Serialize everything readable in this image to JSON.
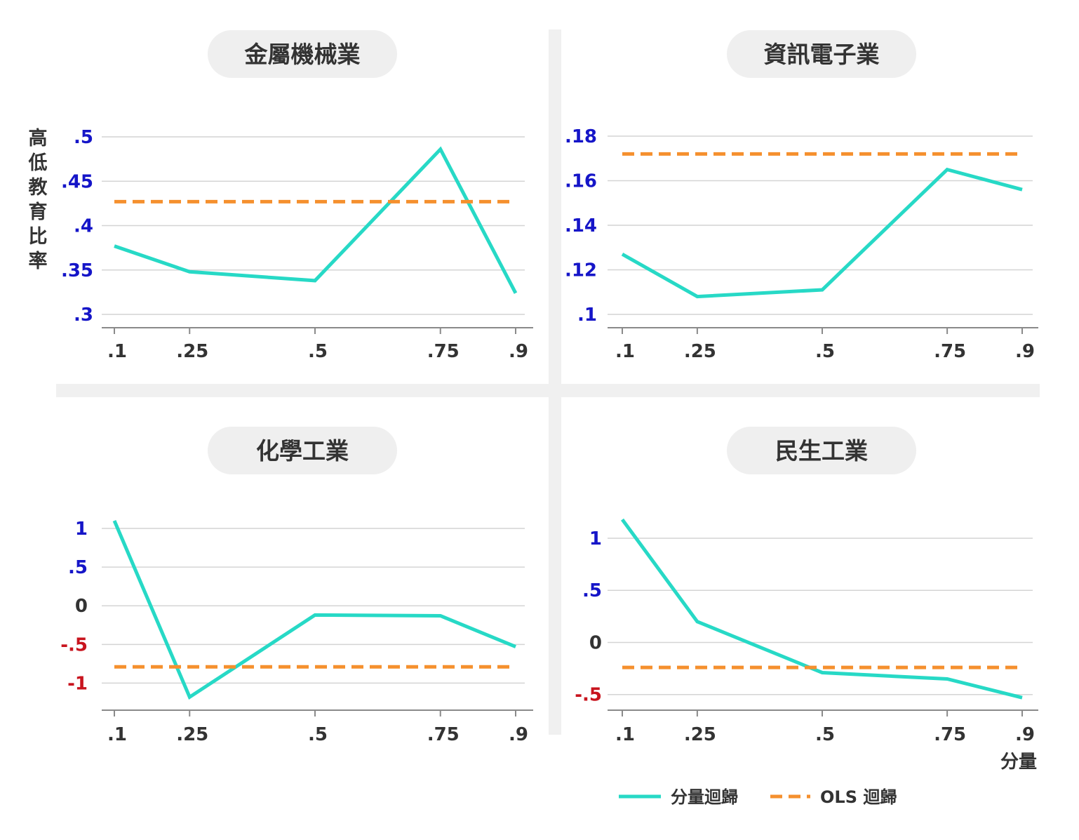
{
  "figure": {
    "y_axis_label": "高低教育比率",
    "x_axis_unit": "分量"
  },
  "legend": {
    "quantile_label": "分量迴歸",
    "ols_label": "OLS 迴歸"
  },
  "colors": {
    "quantile_line": "#27d9c6",
    "ols_line": "#f5902e",
    "positive_tick": "#1515c8",
    "negative_tick": "#c8141e",
    "zero_tick": "#333333",
    "title_pill": "#efefef",
    "divider": "#f0f0f0",
    "grid": "#d4d4d4",
    "axis": "#8a8a8a",
    "text": "#333333"
  },
  "chart_data": [
    {
      "type": "line",
      "title": "金屬機械業",
      "x": [
        0.1,
        0.25,
        0.5,
        0.75,
        0.9
      ],
      "x_tick_labels": [
        ".1",
        ".25",
        ".5",
        ".75",
        ".9"
      ],
      "y_ticks": [
        0.5,
        0.45,
        0.4,
        0.35,
        0.3
      ],
      "y_tick_labels": [
        ".5",
        ".45",
        ".4",
        ".35",
        ".3"
      ],
      "ylim": [
        0.285,
        0.5
      ],
      "series": [
        {
          "name": "分量迴歸",
          "values": [
            0.377,
            0.348,
            0.338,
            0.486,
            0.324
          ]
        },
        {
          "name": "OLS 迴歸",
          "values": [
            0.427,
            0.427,
            0.427,
            0.427,
            0.427
          ]
        }
      ]
    },
    {
      "type": "line",
      "title": "資訊電子業",
      "x": [
        0.1,
        0.25,
        0.5,
        0.75,
        0.9
      ],
      "x_tick_labels": [
        ".1",
        ".25",
        ".5",
        ".75",
        ".9"
      ],
      "y_ticks": [
        0.18,
        0.16,
        0.14,
        0.12,
        0.1
      ],
      "y_tick_labels": [
        ".18",
        ".16",
        ".14",
        ".12",
        ".1"
      ],
      "ylim": [
        0.094,
        0.18
      ],
      "series": [
        {
          "name": "分量迴歸",
          "values": [
            0.127,
            0.108,
            0.111,
            0.165,
            0.156
          ]
        },
        {
          "name": "OLS 迴歸",
          "values": [
            0.172,
            0.172,
            0.172,
            0.172,
            0.172
          ]
        }
      ]
    },
    {
      "type": "line",
      "title": "化學工業",
      "x": [
        0.1,
        0.25,
        0.5,
        0.75,
        0.9
      ],
      "x_tick_labels": [
        ".1",
        ".25",
        ".5",
        ".75",
        ".9"
      ],
      "y_ticks": [
        1,
        0.5,
        0,
        -0.5,
        -1
      ],
      "y_tick_labels": [
        "1",
        ".5",
        "0",
        "-.5",
        "-1"
      ],
      "ylim": [
        -1.35,
        1
      ],
      "series": [
        {
          "name": "分量迴歸",
          "values": [
            1.1,
            -1.18,
            -0.12,
            -0.13,
            -0.53
          ]
        },
        {
          "name": "OLS 迴歸",
          "values": [
            -0.79,
            -0.79,
            -0.79,
            -0.79,
            -0.79
          ]
        }
      ]
    },
    {
      "type": "line",
      "title": "民生工業",
      "x": [
        0.1,
        0.25,
        0.5,
        0.75,
        0.9
      ],
      "x_tick_labels": [
        ".1",
        ".25",
        ".5",
        ".75",
        ".9"
      ],
      "y_ticks": [
        1,
        0.5,
        0,
        -0.5
      ],
      "y_tick_labels": [
        "1",
        ".5",
        "0",
        "-.5"
      ],
      "ylim": [
        -0.65,
        1
      ],
      "series": [
        {
          "name": "分量迴歸",
          "values": [
            1.18,
            0.2,
            -0.29,
            -0.35,
            -0.53
          ]
        },
        {
          "name": "OLS 迴歸",
          "values": [
            -0.24,
            -0.24,
            -0.24,
            -0.24,
            -0.24
          ]
        }
      ]
    }
  ]
}
